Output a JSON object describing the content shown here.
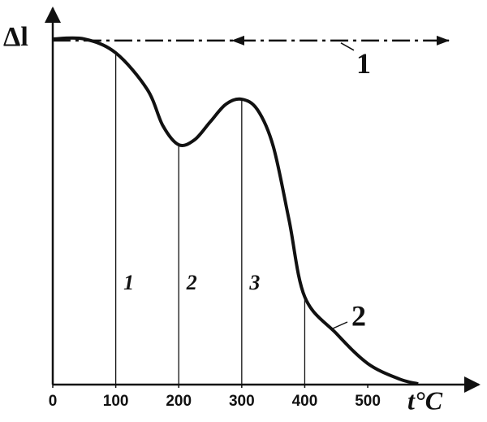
{
  "chart_data": {
    "type": "line",
    "ylabel": "Δl",
    "xlabel": "t°C",
    "xlim": [
      0,
      670
    ],
    "ylim": [
      0,
      100
    ],
    "xticks": [
      0,
      100,
      200,
      300,
      400,
      500
    ],
    "series": [
      {
        "name": "1",
        "color": "#111111",
        "style": "dash-dot",
        "x": [
          0,
          630
        ],
        "values": [
          91.4,
          91.4
        ]
      },
      {
        "name": "2",
        "color": "#111111",
        "style": "solid",
        "x": [
          0,
          50,
          100,
          150,
          175,
          200,
          225,
          250,
          275,
          300,
          325,
          350,
          375,
          400,
          450,
          500,
          550,
          580
        ],
        "values": [
          91.8,
          91.8,
          88.1,
          78.4,
          68.7,
          63.7,
          65.0,
          69.8,
          74.5,
          75.8,
          73.0,
          63.3,
          43.8,
          23.3,
          13.6,
          5.6,
          1.5,
          0.2
        ]
      }
    ],
    "markers": [
      {
        "x": 100,
        "label": "1"
      },
      {
        "x": 200,
        "label": "2"
      },
      {
        "x": 300,
        "label": "3"
      },
      {
        "x": 400,
        "label": null
      }
    ]
  }
}
